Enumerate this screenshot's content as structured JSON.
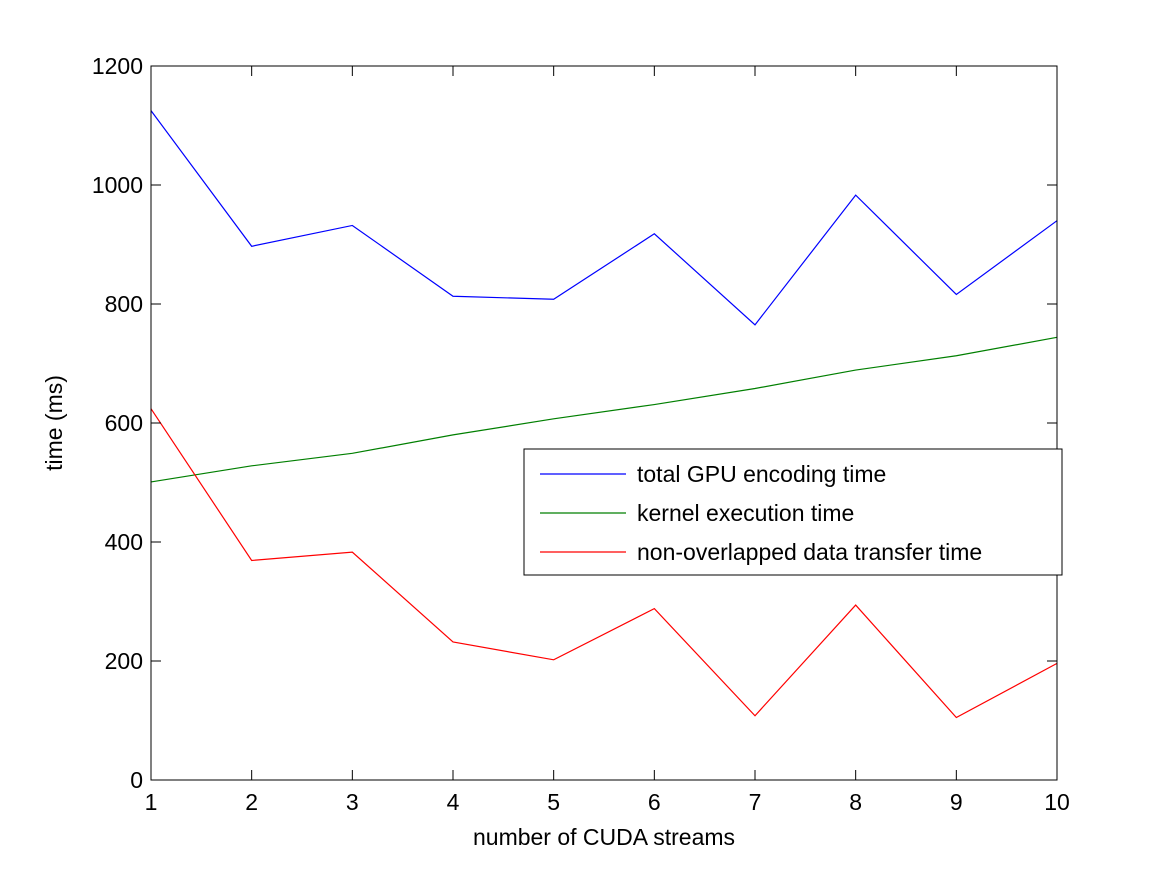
{
  "chart_data": {
    "type": "line",
    "title": "",
    "xlabel": "number of CUDA streams",
    "ylabel": "time (ms)",
    "x": [
      1,
      2,
      3,
      4,
      5,
      6,
      7,
      8,
      9,
      10
    ],
    "xlim": [
      1,
      10
    ],
    "ylim": [
      0,
      1200
    ],
    "xticks": [
      1,
      2,
      3,
      4,
      5,
      6,
      7,
      8,
      9,
      10
    ],
    "yticks": [
      0,
      200,
      400,
      600,
      800,
      1000,
      1200
    ],
    "grid": false,
    "legend_position": "right",
    "series": [
      {
        "name": "total GPU encoding time",
        "color": "#0000ff",
        "values": [
          1125,
          897,
          932,
          813,
          808,
          918,
          765,
          983,
          816,
          940
        ]
      },
      {
        "name": "kernel execution time",
        "color": "#007f00",
        "values": [
          501,
          528,
          549,
          580,
          607,
          631,
          658,
          689,
          713,
          744
        ]
      },
      {
        "name": "non-overlapped data transfer time",
        "color": "#ff0000",
        "values": [
          624,
          369,
          383,
          232,
          202,
          288,
          108,
          294,
          105,
          196
        ]
      }
    ]
  }
}
